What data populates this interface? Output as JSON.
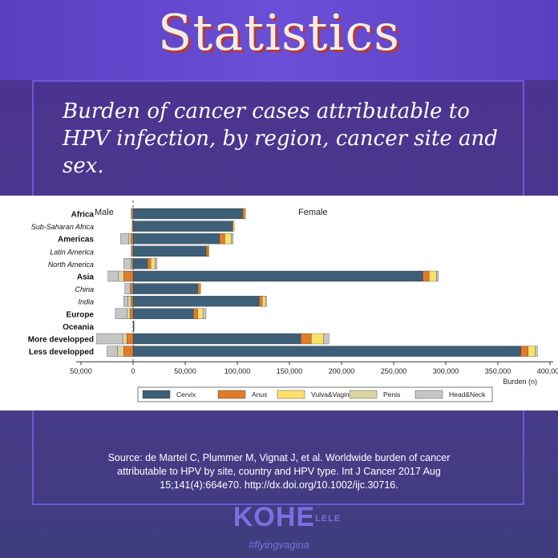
{
  "header": {
    "title": "Statistics",
    "subtitle": "Burden of cancer cases attributable to HPV infection, by region, cancer site and sex."
  },
  "chart_data": {
    "type": "bar",
    "orientation": "horizontal",
    "stacked": true,
    "panel_labels": {
      "male": "Male",
      "female": "Female"
    },
    "xlabel": "Burden (n)",
    "xlim": [
      -50000,
      400000
    ],
    "xticks": [
      "50,000",
      "0",
      "50,000",
      "100,000",
      "150,000",
      "200,000",
      "250,000",
      "300,000",
      "350,000",
      "400,000"
    ],
    "categories": [
      "Africa",
      "Sub-Saharan Africa",
      "Americas",
      "Latin America",
      "North America",
      "Asia",
      "China",
      "India",
      "Europe",
      "Oceania",
      "More developped",
      "Less developped"
    ],
    "category_styles": [
      "bold",
      "italic",
      "bold",
      "italic",
      "italic",
      "bold",
      "italic",
      "italic",
      "bold",
      "bold",
      "bold",
      "bold"
    ],
    "female_series": [
      {
        "name": "Cervix",
        "color": "#3d6078",
        "values": [
          105000,
          95000,
          83000,
          70000,
          14000,
          278000,
          62000,
          121000,
          58000,
          1000,
          161000,
          372000
        ]
      },
      {
        "name": "Anus",
        "color": "#e07b2a",
        "values": [
          2000,
          1000,
          5000,
          2000,
          3000,
          6000,
          2000,
          3000,
          4000,
          0,
          10000,
          7000
        ]
      },
      {
        "name": "Vulva&Vagina",
        "color": "#fbe06a",
        "values": [
          1000,
          1000,
          6000,
          1000,
          4000,
          7000,
          1000,
          3000,
          5000,
          0,
          12000,
          7000
        ]
      },
      {
        "name": "Penis",
        "color": "#dcd4a4",
        "values": [
          0,
          0,
          0,
          0,
          0,
          0,
          0,
          0,
          0,
          0,
          0,
          0
        ]
      },
      {
        "name": "Head&Neck",
        "color": "#c6c6c6",
        "values": [
          0,
          0,
          2000,
          0,
          2000,
          2000,
          0,
          1000,
          3000,
          0,
          5000,
          2000
        ]
      }
    ],
    "male_series": [
      {
        "name": "Cervix",
        "color": "#3d6078",
        "values": [
          0,
          0,
          0,
          0,
          0,
          0,
          0,
          0,
          0,
          0,
          0,
          0
        ]
      },
      {
        "name": "Anus",
        "color": "#e07b2a",
        "values": [
          1000,
          1000,
          2000,
          1000,
          1000,
          9000,
          2000,
          2000,
          3000,
          0,
          6000,
          9000
        ]
      },
      {
        "name": "Vulva&Vagina",
        "color": "#fbe06a",
        "values": [
          0,
          0,
          0,
          0,
          0,
          0,
          0,
          0,
          0,
          0,
          0,
          0
        ]
      },
      {
        "name": "Penis",
        "color": "#dcd4a4",
        "values": [
          1000,
          0,
          2000,
          1000,
          1000,
          5000,
          1000,
          3000,
          3000,
          0,
          4000,
          6000
        ]
      },
      {
        "name": "Head&Neck",
        "color": "#c6c6c6",
        "values": [
          0,
          0,
          8000,
          0,
          7000,
          10000,
          5000,
          4000,
          11000,
          0,
          25000,
          10000
        ]
      }
    ]
  },
  "source": "Source: de Martel C, Plummer M, Vignat J, et al. Worldwide burden of cancer attributable to HPV by site, country and HPV type. Int J Cancer 2017 Aug 15;141(4):664e70. http://dx.doi.org/10.1002/ijc.30716.",
  "logo": {
    "main": "KOHE",
    "side": "LELE",
    "tagline": "#flyingvagina"
  }
}
